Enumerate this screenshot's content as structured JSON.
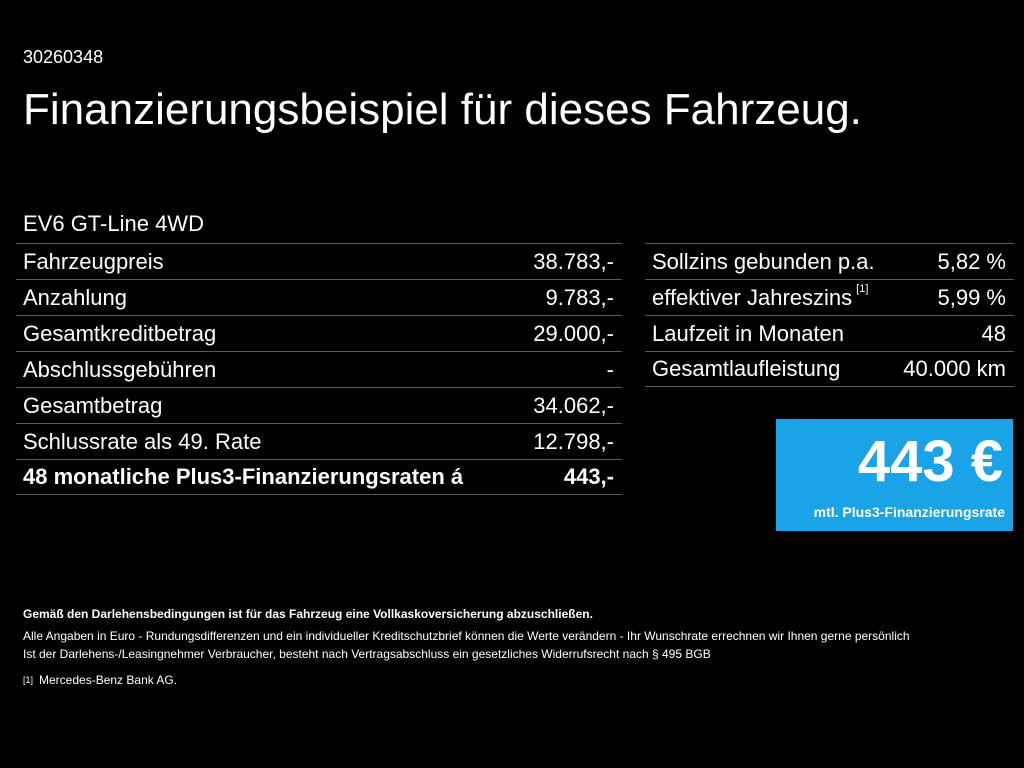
{
  "id_number": "30260348",
  "headline": "Finanzierungsbeispiel für dieses Fahrzeug.",
  "model": "EV6 GT-Line 4WD",
  "left_table": [
    {
      "label": "Fahrzeugpreis",
      "value": "38.783,-"
    },
    {
      "label": "Anzahlung",
      "value": "9.783,-"
    },
    {
      "label": "Gesamtkreditbetrag",
      "value": "29.000,-"
    },
    {
      "label": "Abschlussgebühren",
      "value": "-"
    },
    {
      "label": "Gesamtbetrag",
      "value": "34.062,-"
    },
    {
      "label": "Schlussrate als 49. Rate",
      "value": "12.798,-"
    },
    {
      "label": "48 monatliche Plus3-Finanzierungsraten á",
      "value": "443,-"
    }
  ],
  "right_table": [
    {
      "label": "Sollzins gebunden p.a.",
      "sup": "",
      "value": "5,82 %"
    },
    {
      "label": "effektiver Jahreszins",
      "sup": "[1]",
      "value": "5,99 %"
    },
    {
      "label": "Laufzeit in Monaten",
      "sup": "",
      "value": "48"
    },
    {
      "label": "Gesamtlaufleistung",
      "sup": "",
      "value": "40.000 km"
    }
  ],
  "rate_box": {
    "amount": "443 €",
    "caption": "mtl. Plus3-Finanzierungsrate",
    "color": "#1ba3e8"
  },
  "footnotes": {
    "bold_line": "Gemäß den Darlehensbedingungen ist für das Fahrzeug eine Vollkaskoversicherung abzuschließen.",
    "line1": "Alle Angaben in Euro - Rundungsdifferenzen und ein individueller Kreditschutzbrief können die Werte verändern - Ihr Wunschrate errechnen wir Ihnen gerne persönlich",
    "line2": "Ist der Darlehens-/Leasingnehmer Verbraucher, besteht nach Vertragsabschluss ein gesetzliches Widerrufsrecht nach § 495 BGB",
    "ref_marker": "[1]",
    "ref_text": "Mercedes-Benz Bank AG."
  }
}
